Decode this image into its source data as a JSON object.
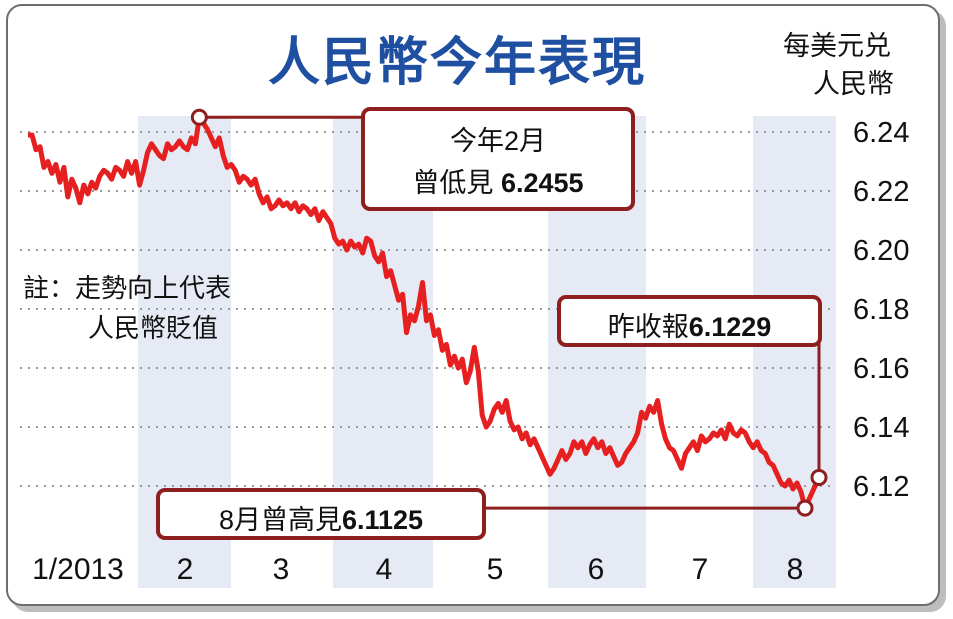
{
  "chart_data": {
    "type": "line",
    "title": "人民幣今年表現",
    "unit_label_line1": "每美元兑",
    "unit_label_line2": "人民幣",
    "note_line1": "註：走勢向上代表",
    "note_line2": "人民幣貶值",
    "y_axis": {
      "reversed": true,
      "ylim": [
        6.105,
        6.252
      ],
      "ticks": [
        "6.24",
        "6.22",
        "6.20",
        "6.18",
        "6.16",
        "6.14",
        "6.12"
      ],
      "side": "right",
      "grid": "dotted"
    },
    "x_axis": {
      "labels": [
        "1/2013",
        "2",
        "3",
        "4",
        "5",
        "6",
        "7",
        "8"
      ]
    },
    "series": [
      {
        "color": "#e62020",
        "values": [
          6.239,
          6.239,
          6.234,
          6.235,
          6.228,
          6.23,
          6.226,
          6.229,
          6.223,
          6.228,
          6.218,
          6.224,
          6.221,
          6.216,
          6.222,
          6.219,
          6.223,
          6.221,
          6.225,
          6.227,
          6.226,
          6.224,
          6.228,
          6.227,
          6.225,
          6.23,
          6.226,
          6.23,
          6.222,
          6.227,
          6.233,
          6.236,
          6.234,
          6.232,
          6.231,
          6.236,
          6.234,
          6.235,
          6.237,
          6.235,
          6.234,
          6.238,
          6.236,
          6.245,
          6.243,
          6.241,
          6.238,
          6.235,
          6.238,
          6.232,
          6.228,
          6.229,
          6.227,
          6.223,
          6.225,
          6.224,
          6.222,
          6.224,
          6.219,
          6.216,
          6.218,
          6.214,
          6.215,
          6.217,
          6.215,
          6.216,
          6.214,
          6.216,
          6.213,
          6.215,
          6.214,
          6.212,
          6.214,
          6.21,
          6.213,
          6.211,
          6.209,
          6.204,
          6.202,
          6.203,
          6.2,
          6.203,
          6.201,
          6.202,
          6.199,
          6.204,
          6.203,
          6.198,
          6.196,
          6.199,
          6.191,
          6.193,
          6.188,
          6.183,
          6.185,
          6.172,
          6.178,
          6.176,
          6.181,
          6.189,
          6.176,
          6.178,
          6.171,
          6.173,
          6.166,
          6.168,
          6.161,
          6.164,
          6.16,
          6.163,
          6.155,
          6.159,
          6.167,
          6.159,
          6.144,
          6.14,
          6.142,
          6.146,
          6.148,
          6.145,
          6.149,
          6.142,
          6.139,
          6.14,
          6.136,
          6.138,
          6.134,
          6.136,
          6.133,
          6.13,
          6.127,
          6.124,
          6.126,
          6.129,
          6.132,
          6.129,
          6.131,
          6.135,
          6.133,
          6.135,
          6.131,
          6.134,
          6.136,
          6.133,
          6.135,
          6.131,
          6.133,
          6.13,
          6.127,
          6.128,
          6.131,
          6.133,
          6.135,
          6.138,
          6.145,
          6.143,
          6.147,
          6.145,
          6.149,
          6.141,
          6.136,
          6.133,
          6.132,
          6.129,
          6.126,
          6.131,
          6.133,
          6.135,
          6.132,
          6.137,
          6.135,
          6.136,
          6.138,
          6.137,
          6.139,
          6.136,
          6.141,
          6.138,
          6.137,
          6.139,
          6.138,
          6.135,
          6.133,
          6.135,
          6.132,
          6.131,
          6.128,
          6.127,
          6.124,
          6.121,
          6.12,
          6.122,
          6.119,
          6.121,
          6.118,
          6.1125,
          6.1229
        ]
      }
    ],
    "annotations": [
      {
        "line1": "今年2月",
        "line2_prefix": "曾低見",
        "value": "6.2455",
        "at_value": 6.2455
      },
      {
        "prefix": "昨收報",
        "value": "6.1229",
        "at_value": 6.1229
      },
      {
        "prefix": "8月曾高見",
        "value": "6.1125",
        "at_value": 6.1125
      }
    ]
  },
  "colors": {
    "line": "#e62020",
    "box_border": "#8e1f1f",
    "title": "#1f4fa0",
    "stripe": "#e6eaf4",
    "grid": "#999999"
  }
}
